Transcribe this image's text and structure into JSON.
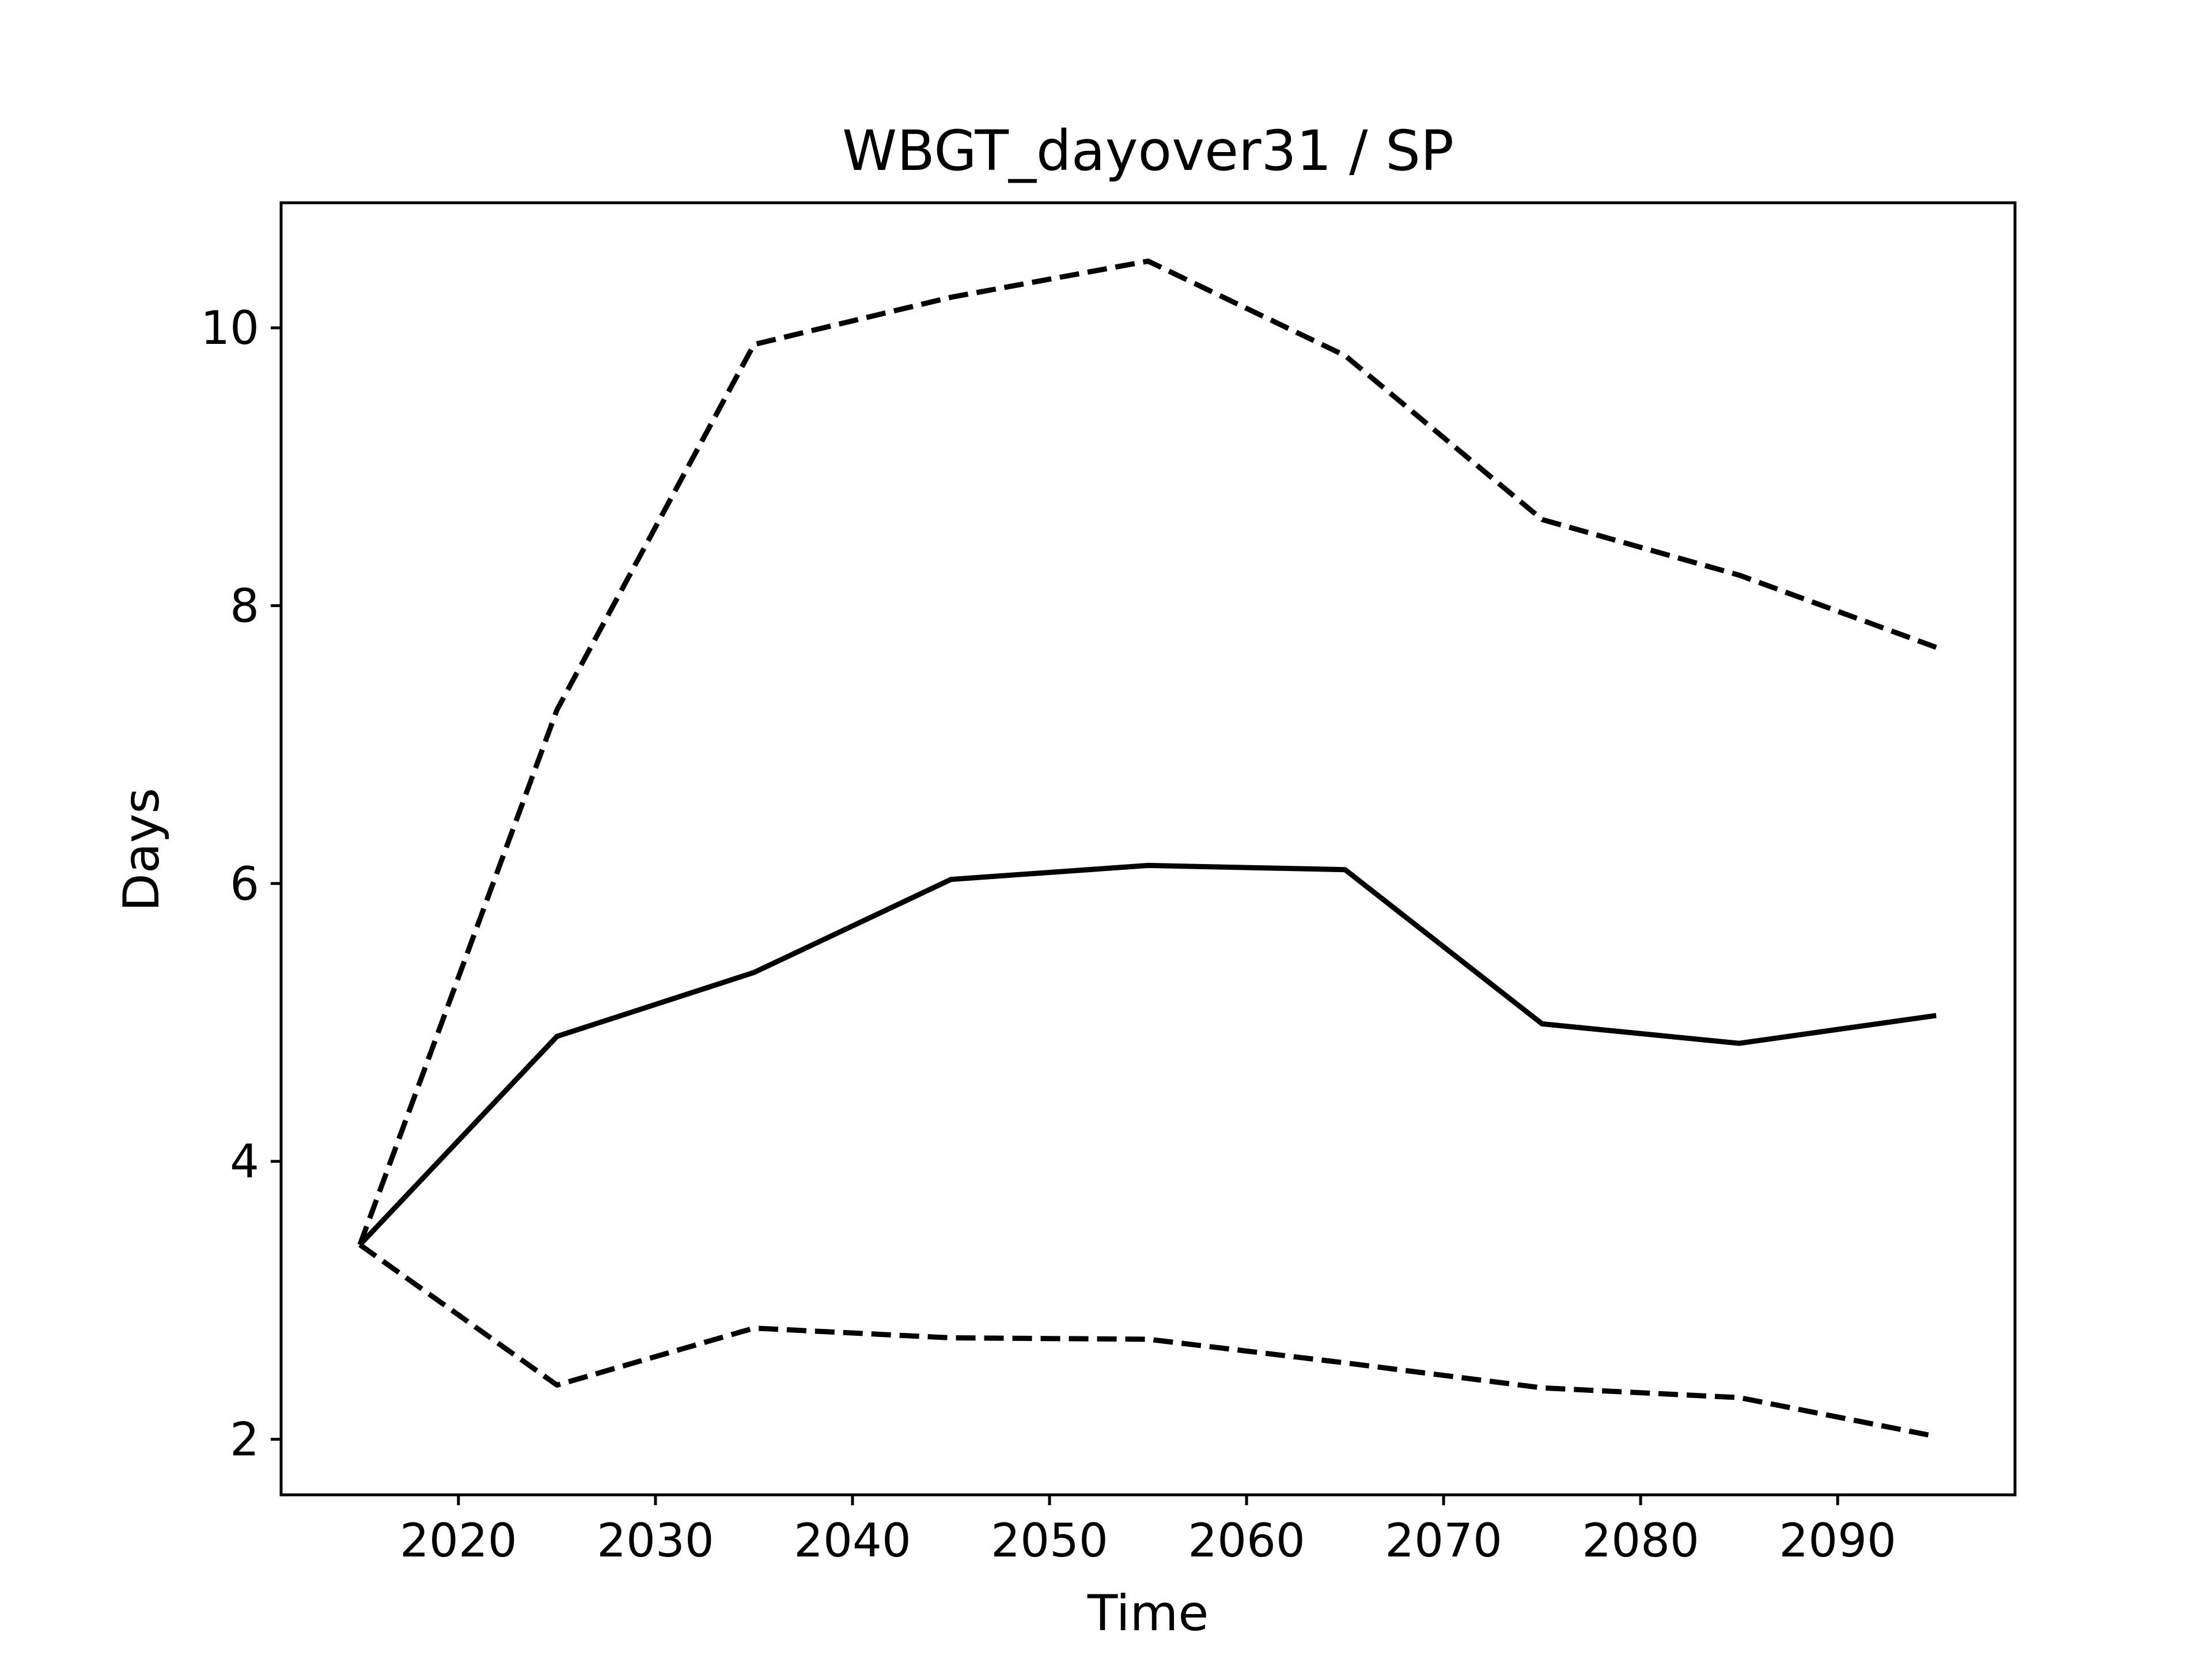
{
  "chart_data": {
    "type": "line",
    "title": "WBGT_dayover31 / SP",
    "xlabel": "Time",
    "ylabel": "Days",
    "xlim": [
      2011,
      2099
    ],
    "ylim": [
      1.6,
      10.9
    ],
    "xticks": [
      2020,
      2030,
      2040,
      2050,
      2060,
      2070,
      2080,
      2090
    ],
    "yticks": [
      2,
      4,
      6,
      8,
      10
    ],
    "grid": false,
    "x": [
      2015,
      2025,
      2035,
      2045,
      2055,
      2065,
      2075,
      2085,
      2095
    ],
    "series": [
      {
        "style": "solid",
        "color": "#000000",
        "values": [
          3.4,
          4.9,
          5.36,
          6.03,
          6.13,
          6.1,
          4.99,
          4.85,
          5.05
        ]
      },
      {
        "style": "dashed",
        "color": "#000000",
        "values": [
          3.4,
          7.25,
          9.88,
          10.22,
          10.48,
          9.8,
          8.62,
          8.22,
          7.7
        ]
      },
      {
        "style": "dashed",
        "color": "#000000",
        "values": [
          3.4,
          2.39,
          2.8,
          2.73,
          2.72,
          2.55,
          2.37,
          2.3,
          2.02
        ]
      }
    ]
  }
}
